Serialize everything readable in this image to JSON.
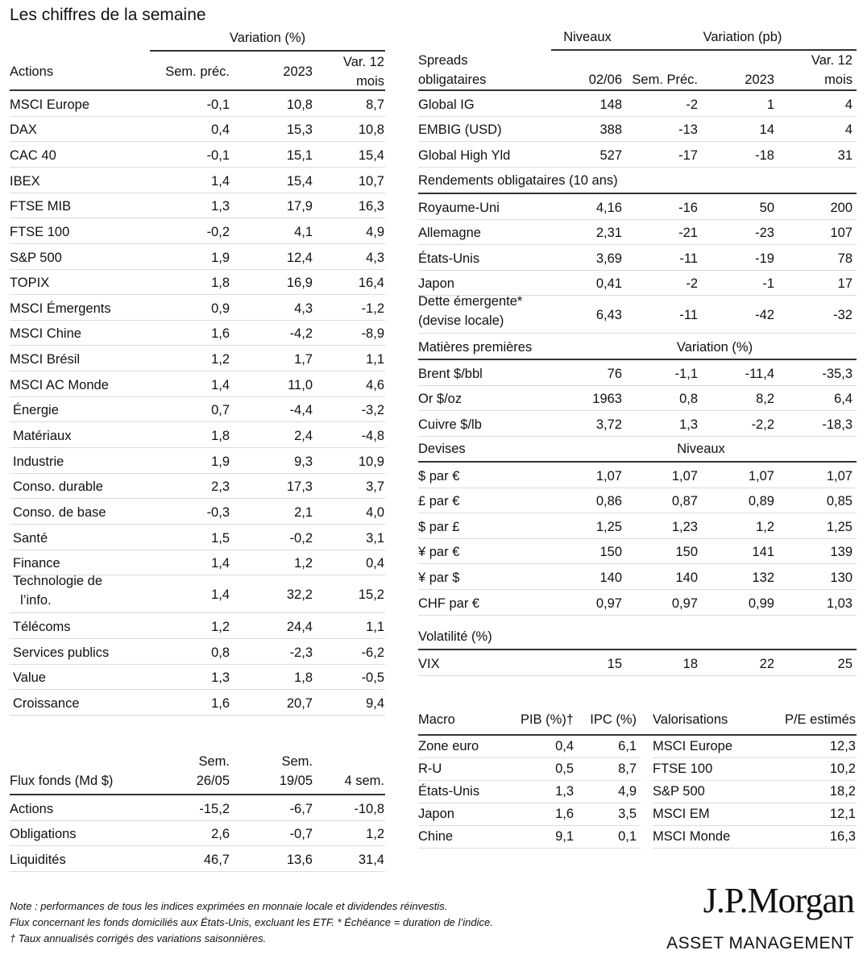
{
  "title": "Les chiffres de la semaine",
  "actions": {
    "group_header": "Variation (%)",
    "headers": [
      "Actions",
      "Sem. préc.",
      "2023",
      "Var. 12\nmois"
    ],
    "rows": [
      [
        "MSCI Europe",
        "-0,1",
        "10,8",
        "8,7"
      ],
      [
        "DAX",
        "0,4",
        "15,3",
        "10,8"
      ],
      [
        "CAC 40",
        "-0,1",
        "15,1",
        "15,4"
      ],
      [
        "IBEX",
        "1,4",
        "15,4",
        "10,7"
      ],
      [
        "FTSE MIB",
        "1,3",
        "17,9",
        "16,3"
      ],
      [
        "FTSE 100",
        "-0,2",
        "4,1",
        "4,9"
      ],
      [
        "S&P 500",
        "1,9",
        "12,4",
        "4,3"
      ],
      [
        "TOPIX",
        "1,8",
        "16,9",
        "16,4"
      ],
      [
        "MSCI Émergents",
        "0,9",
        "4,3",
        "-1,2"
      ],
      [
        "MSCI Chine",
        "1,6",
        "-4,2",
        "-8,9"
      ],
      [
        "MSCI Brésil",
        "1,2",
        "1,7",
        "1,1"
      ],
      [
        "MSCI AC Monde",
        "1,4",
        "11,0",
        "4,6"
      ],
      [
        "Énergie",
        "0,7",
        "-4,4",
        "-3,2"
      ],
      [
        "Matériaux",
        "1,8",
        "2,4",
        "-4,8"
      ],
      [
        "Industrie",
        "1,9",
        "9,3",
        "10,9"
      ],
      [
        "Conso. durable",
        "2,3",
        "17,3",
        "3,7"
      ],
      [
        "Conso. de base",
        "-0,3",
        "2,1",
        "4,0"
      ],
      [
        "Santé",
        "1,5",
        "-0,2",
        "3,1"
      ],
      [
        "Finance",
        "1,4",
        "1,2",
        "0,4"
      ],
      [
        "Technologie de\n  l’info.",
        "1,4",
        "32,2",
        "15,2"
      ],
      [
        "Télécoms",
        "1,2",
        "24,4",
        "1,1"
      ],
      [
        "Services publics",
        "0,8",
        "-2,3",
        "-6,2"
      ],
      [
        "Value",
        "1,3",
        "1,8",
        "-0,5"
      ],
      [
        "Croissance",
        "1,6",
        "20,7",
        "9,4"
      ]
    ]
  },
  "flux": {
    "headers": [
      "Flux fonds (Md $)",
      "Sem.\n26/05",
      "Sem.\n19/05",
      "4 sem."
    ],
    "rows": [
      [
        "Actions",
        "-15,2",
        "-6,7",
        "-10,8"
      ],
      [
        "Obligations",
        "2,6",
        "-0,7",
        "1,2"
      ],
      [
        "Liquidités",
        "46,7",
        "13,6",
        "31,4"
      ]
    ]
  },
  "spreads": {
    "group_niveaux": "Niveaux",
    "group_variation": "Variation (pb)",
    "headers": [
      "Spreads\nobligataires",
      "02/06",
      "Sem. Préc.",
      "2023",
      "Var. 12\nmois"
    ],
    "rows": [
      [
        "Global IG",
        "148",
        "-2",
        "1",
        "4"
      ],
      [
        "EMBIG (USD)",
        "388",
        "-13",
        "14",
        "4"
      ],
      [
        "Global High Yld",
        "527",
        "-17",
        "-18",
        "31"
      ]
    ]
  },
  "rendements": {
    "title": "Rendements obligataires (10 ans)",
    "rows": [
      [
        "Royaume-Uni",
        "4,16",
        "-16",
        "50",
        "200"
      ],
      [
        "Allemagne",
        "2,31",
        "-21",
        "-23",
        "107"
      ],
      [
        "États-Unis",
        "3,69",
        "-11",
        "-19",
        "78"
      ],
      [
        "Japon",
        "0,41",
        "-2",
        "-1",
        "17"
      ],
      [
        "Dette émergente*\n(devise locale)",
        "6,43",
        "-11",
        "-42",
        "-32"
      ]
    ]
  },
  "matieres": {
    "title": "Matières premières",
    "sub": "Variation (%)",
    "rows": [
      [
        "Brent $/bbl",
        "76",
        "-1,1",
        "-11,4",
        "-35,3"
      ],
      [
        "Or $/oz",
        "1963",
        "0,8",
        "8,2",
        "6,4"
      ],
      [
        "Cuivre $/lb",
        "3,72",
        "1,3",
        "-2,2",
        "-18,3"
      ]
    ]
  },
  "devises": {
    "title": "Devises",
    "sub": "Niveaux",
    "rows": [
      [
        "$ par €",
        "1,07",
        "1,07",
        "1,07",
        "1,07"
      ],
      [
        "£ par €",
        "0,86",
        "0,87",
        "0,89",
        "0,85"
      ],
      [
        "$ par £",
        "1,25",
        "1,23",
        "1,2",
        "1,25"
      ],
      [
        "¥ par €",
        "150",
        "150",
        "141",
        "139"
      ],
      [
        "¥ par $",
        "140",
        "140",
        "132",
        "130"
      ],
      [
        "CHF par €",
        "0,97",
        "0,97",
        "0,99",
        "1,03"
      ]
    ]
  },
  "volatilite": {
    "title": "Volatilité (%)",
    "rows": [
      [
        "VIX",
        "15",
        "18",
        "22",
        "25"
      ]
    ]
  },
  "macro": {
    "headers": [
      "Macro",
      "PIB (%)†",
      "IPC (%)"
    ],
    "rows": [
      [
        "Zone euro",
        "0,4",
        "6,1"
      ],
      [
        "R-U",
        "0,5",
        "8,7"
      ],
      [
        "États-Unis",
        "1,3",
        "4,9"
      ],
      [
        "Japon",
        "1,6",
        "3,5"
      ],
      [
        "Chine",
        "9,1",
        "0,1"
      ]
    ]
  },
  "valorisations": {
    "headers": [
      "Valorisations",
      "P/E estimés"
    ],
    "rows": [
      [
        "MSCI Europe",
        "12,3"
      ],
      [
        "FTSE 100",
        "10,2"
      ],
      [
        "S&P 500",
        "18,2"
      ],
      [
        "MSCI EM",
        "12,1"
      ],
      [
        "MSCI Monde",
        "16,3"
      ]
    ]
  },
  "notes": [
    "Note : performances de tous les indices exprimées en monnaie locale et dividendes réinvestis.",
    "Flux concernant les fonds domiciliés aux États-Unis, excluant les ETF. * Échéance = duration de l’indice.",
    "† Taux annualisés corrigés des variations saisonnières."
  ],
  "logo": {
    "line1": "J.P.Morgan",
    "line2": "ASSET MANAGEMENT"
  }
}
